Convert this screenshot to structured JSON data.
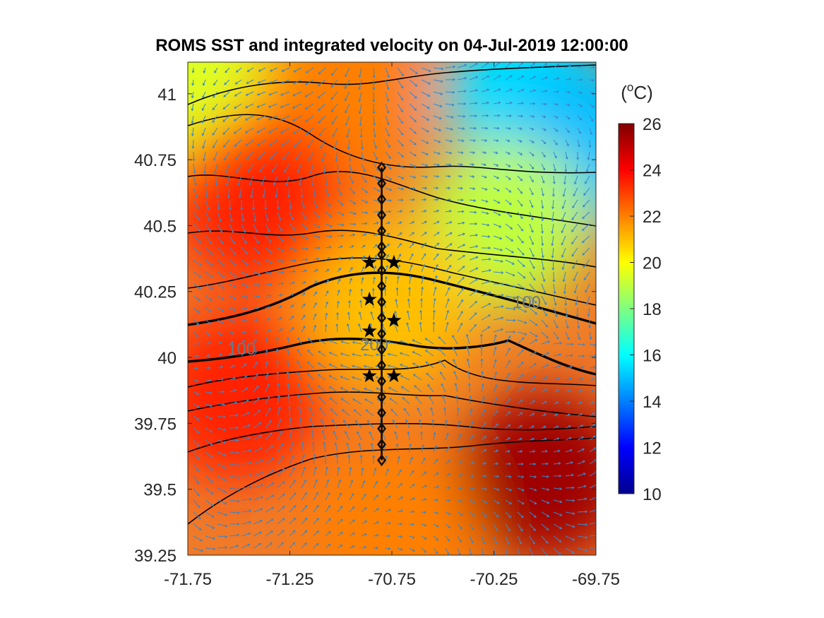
{
  "chart_data": {
    "type": "heatmap",
    "title": "ROMS SST and integrated velocity on 04-Jul-2019 12:00:00",
    "xlim": [
      -71.75,
      -69.75
    ],
    "ylim": [
      39.25,
      41.12
    ],
    "x_ticks": [
      "-71.75",
      "-71.25",
      "-70.75",
      "-70.25",
      "-69.75"
    ],
    "x_tick_values": [
      -71.75,
      -71.25,
      -70.75,
      -70.25,
      -69.75
    ],
    "y_ticks": [
      "39.25",
      "39.5",
      "39.75",
      "40",
      "40.25",
      "40.5",
      "40.75",
      "41"
    ],
    "y_tick_values": [
      39.25,
      39.5,
      39.75,
      40.0,
      40.25,
      40.5,
      40.75,
      41.0
    ],
    "colorbar": {
      "unit_base": "(",
      "unit_sup": "o",
      "unit_rest": "C)",
      "range": [
        10,
        26
      ],
      "ticks": [
        "10",
        "12",
        "14",
        "16",
        "18",
        "20",
        "22",
        "24",
        "26"
      ],
      "colormap": "jet"
    },
    "sst_description_points": [
      {
        "lon": -71.7,
        "lat": 41.05,
        "sst": 19.5
      },
      {
        "lon": -71.0,
        "lat": 41.0,
        "sst": 22
      },
      {
        "lon": -70.1,
        "lat": 41.0,
        "sst": 15.5
      },
      {
        "lon": -69.8,
        "lat": 40.8,
        "sst": 15
      },
      {
        "lon": -70.2,
        "lat": 40.5,
        "sst": 19
      },
      {
        "lon": -71.4,
        "lat": 40.6,
        "sst": 23.5
      },
      {
        "lon": -70.75,
        "lat": 40.2,
        "sst": 21
      },
      {
        "lon": -71.5,
        "lat": 39.85,
        "sst": 23.5
      },
      {
        "lon": -70.0,
        "lat": 39.55,
        "sst": 25.5
      },
      {
        "lon": -70.75,
        "lat": 39.35,
        "sst": 22
      }
    ],
    "bathymetry_labels": [
      "100",
      "200",
      "100"
    ],
    "transect": {
      "lon": -70.8,
      "lat_stations": [
        40.72,
        40.66,
        40.6,
        40.54,
        40.48,
        40.42,
        40.39,
        40.33,
        40.27,
        40.21,
        40.15,
        40.09,
        40.03,
        39.97,
        39.91,
        39.85,
        39.79,
        39.73,
        39.67,
        39.61
      ]
    },
    "moorings": [
      {
        "lon": -70.86,
        "lat": 40.36
      },
      {
        "lon": -70.74,
        "lat": 40.36
      },
      {
        "lon": -70.86,
        "lat": 40.22
      },
      {
        "lon": -70.74,
        "lat": 40.14
      },
      {
        "lon": -70.86,
        "lat": 40.1
      },
      {
        "lon": -70.86,
        "lat": 39.93
      },
      {
        "lon": -70.74,
        "lat": 39.93
      }
    ],
    "arrow_color": "#3a86c8"
  }
}
